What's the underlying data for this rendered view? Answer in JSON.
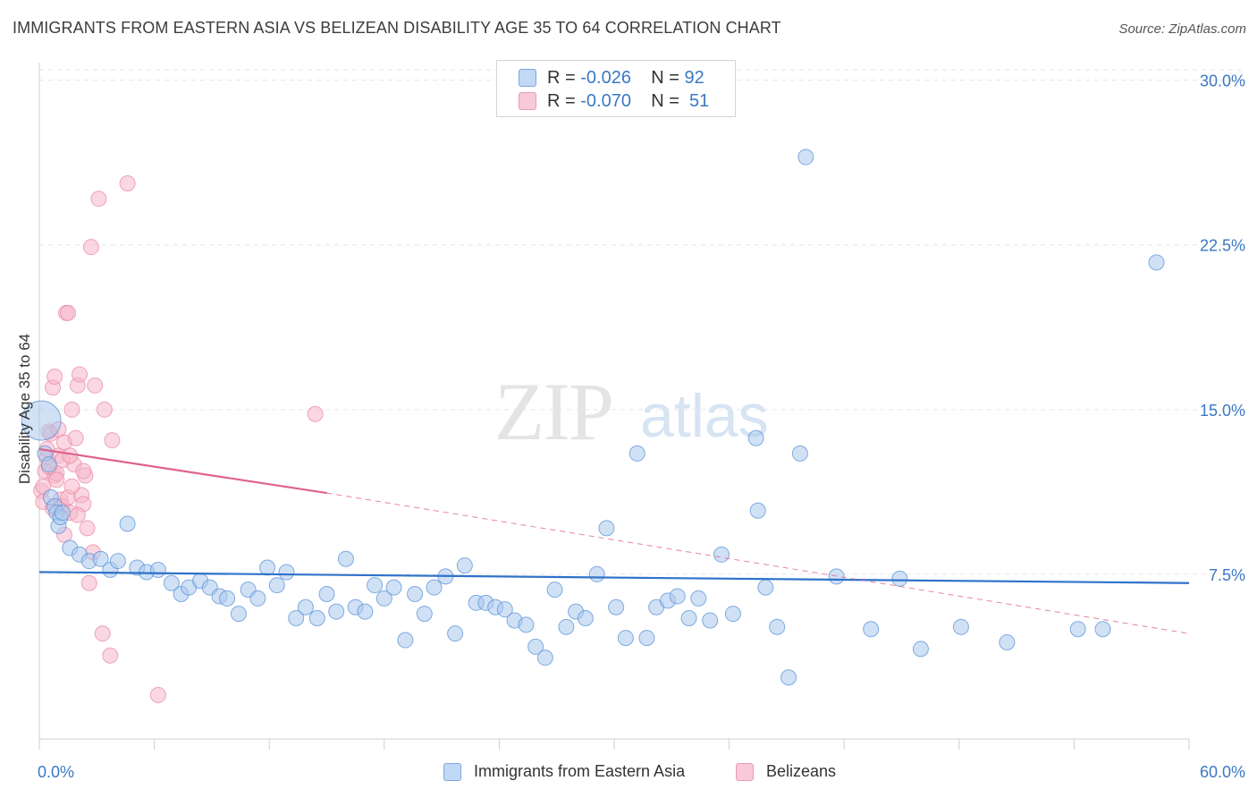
{
  "title": "IMMIGRANTS FROM EASTERN ASIA VS BELIZEAN DISABILITY AGE 35 TO 64 CORRELATION CHART",
  "source": "Source: ZipAtlas.com",
  "watermark": {
    "zip": "ZIP",
    "atlas": "atlas"
  },
  "legend": {
    "rows": [
      {
        "r_label": "R =",
        "r_value": "-0.026",
        "n_label": "N =",
        "n_value": "92"
      },
      {
        "r_label": "R =",
        "r_value": "-0.070",
        "n_label": "N =",
        "n_value": "51"
      }
    ]
  },
  "colors": {
    "blue_fill": "#a9c8ef",
    "blue_stroke": "#5b93d6",
    "blue_line": "#2f72c9",
    "pink_fill": "#f6b6cb",
    "pink_stroke": "#e8849f",
    "pink_line": "#e0628c",
    "tick_label": "#3b78c4",
    "grid": "#e6e6e6"
  },
  "chart_data": {
    "type": "scatter",
    "title": "IMMIGRANTS FROM EASTERN ASIA VS BELIZEAN DISABILITY AGE 35 TO 64 CORRELATION CHART",
    "xlabel": "",
    "ylabel": "Disability Age 35 to 64",
    "xlim": [
      0,
      60
    ],
    "ylim": [
      0,
      30.8
    ],
    "x_tick_labels": [
      "0.0%",
      "60.0%"
    ],
    "y_ticks": [
      7.5,
      15.0,
      22.5,
      30.0
    ],
    "y_tick_labels": [
      "7.5%",
      "15.0%",
      "22.5%",
      "30.0%"
    ],
    "grid": "horizontal dashed",
    "legend_position": "top-center",
    "series": [
      {
        "name": "Immigrants from Eastern Asia",
        "color": "#a9c8ef",
        "trend": {
          "x": [
            0,
            60
          ],
          "y": [
            7.6,
            7.1
          ],
          "style": "solid"
        },
        "points": [
          [
            0.1,
            14.5
          ],
          [
            0.3,
            13.0
          ],
          [
            0.5,
            12.5
          ],
          [
            0.6,
            11.0
          ],
          [
            0.8,
            10.6
          ],
          [
            0.9,
            10.3
          ],
          [
            1.0,
            9.7
          ],
          [
            1.1,
            10.1
          ],
          [
            1.2,
            10.3
          ],
          [
            1.6,
            8.7
          ],
          [
            2.1,
            8.4
          ],
          [
            2.6,
            8.1
          ],
          [
            3.2,
            8.2
          ],
          [
            3.7,
            7.7
          ],
          [
            4.1,
            8.1
          ],
          [
            4.6,
            9.8
          ],
          [
            5.1,
            7.8
          ],
          [
            5.6,
            7.6
          ],
          [
            6.2,
            7.7
          ],
          [
            6.9,
            7.1
          ],
          [
            7.4,
            6.6
          ],
          [
            7.8,
            6.9
          ],
          [
            8.4,
            7.2
          ],
          [
            8.9,
            6.9
          ],
          [
            9.4,
            6.5
          ],
          [
            9.8,
            6.4
          ],
          [
            10.4,
            5.7
          ],
          [
            10.9,
            6.8
          ],
          [
            11.4,
            6.4
          ],
          [
            11.9,
            7.8
          ],
          [
            12.4,
            7.0
          ],
          [
            12.9,
            7.6
          ],
          [
            13.4,
            5.5
          ],
          [
            13.9,
            6.0
          ],
          [
            14.5,
            5.5
          ],
          [
            15.0,
            6.6
          ],
          [
            15.5,
            5.8
          ],
          [
            16.0,
            8.2
          ],
          [
            16.5,
            6.0
          ],
          [
            17.0,
            5.8
          ],
          [
            17.5,
            7.0
          ],
          [
            18.0,
            6.4
          ],
          [
            18.5,
            6.9
          ],
          [
            19.1,
            4.5
          ],
          [
            19.6,
            6.6
          ],
          [
            20.1,
            5.7
          ],
          [
            20.6,
            6.9
          ],
          [
            21.2,
            7.4
          ],
          [
            21.7,
            4.8
          ],
          [
            22.2,
            7.9
          ],
          [
            22.8,
            6.2
          ],
          [
            23.3,
            6.2
          ],
          [
            23.8,
            6.0
          ],
          [
            24.3,
            5.9
          ],
          [
            24.8,
            5.4
          ],
          [
            25.4,
            5.2
          ],
          [
            25.9,
            4.2
          ],
          [
            26.4,
            3.7
          ],
          [
            26.9,
            6.8
          ],
          [
            27.5,
            5.1
          ],
          [
            28.0,
            5.8
          ],
          [
            28.5,
            5.5
          ],
          [
            29.1,
            7.5
          ],
          [
            29.6,
            9.6
          ],
          [
            30.1,
            6.0
          ],
          [
            30.6,
            4.6
          ],
          [
            31.2,
            13.0
          ],
          [
            31.7,
            4.6
          ],
          [
            32.2,
            6.0
          ],
          [
            32.8,
            6.3
          ],
          [
            33.3,
            6.5
          ],
          [
            33.9,
            5.5
          ],
          [
            34.4,
            6.4
          ],
          [
            35.0,
            5.4
          ],
          [
            35.6,
            8.4
          ],
          [
            36.2,
            5.7
          ],
          [
            37.4,
            13.7
          ],
          [
            37.5,
            10.4
          ],
          [
            37.9,
            6.9
          ],
          [
            38.5,
            5.1
          ],
          [
            39.1,
            2.8
          ],
          [
            39.7,
            13.0
          ],
          [
            40.0,
            26.5
          ],
          [
            41.6,
            7.4
          ],
          [
            43.4,
            5.0
          ],
          [
            44.9,
            7.3
          ],
          [
            46.0,
            4.1
          ],
          [
            48.1,
            5.1
          ],
          [
            50.5,
            4.4
          ],
          [
            54.2,
            5.0
          ],
          [
            55.5,
            5.0
          ],
          [
            58.3,
            21.7
          ]
        ]
      },
      {
        "name": "Belizeans",
        "color": "#f6b6cb",
        "trend": {
          "x": [
            0,
            15
          ],
          "y": [
            13.2,
            11.2
          ],
          "style": "solid",
          "extended": {
            "x": [
              15,
              60
            ],
            "y": [
              11.2,
              4.8
            ],
            "style": "dashed"
          }
        },
        "points": [
          [
            0.1,
            11.3
          ],
          [
            0.2,
            10.8
          ],
          [
            0.3,
            12.2
          ],
          [
            0.4,
            12.8
          ],
          [
            0.5,
            14.0
          ],
          [
            0.6,
            13.9
          ],
          [
            0.7,
            16.0
          ],
          [
            0.8,
            16.5
          ],
          [
            0.8,
            12.0
          ],
          [
            0.9,
            12.1
          ],
          [
            1.0,
            14.1
          ],
          [
            1.0,
            12.9
          ],
          [
            1.1,
            10.9
          ],
          [
            1.2,
            10.6
          ],
          [
            1.3,
            9.3
          ],
          [
            1.3,
            13.5
          ],
          [
            1.4,
            19.4
          ],
          [
            1.5,
            19.4
          ],
          [
            1.5,
            11.0
          ],
          [
            1.6,
            10.3
          ],
          [
            1.7,
            15.0
          ],
          [
            1.8,
            12.5
          ],
          [
            1.9,
            13.7
          ],
          [
            2.0,
            16.1
          ],
          [
            2.1,
            16.6
          ],
          [
            2.2,
            11.1
          ],
          [
            2.3,
            10.7
          ],
          [
            2.4,
            12.0
          ],
          [
            2.5,
            9.6
          ],
          [
            2.6,
            7.1
          ],
          [
            2.7,
            22.4
          ],
          [
            2.8,
            8.5
          ],
          [
            2.9,
            16.1
          ],
          [
            3.1,
            24.6
          ],
          [
            3.3,
            4.8
          ],
          [
            3.4,
            15.0
          ],
          [
            3.7,
            3.8
          ],
          [
            3.8,
            13.6
          ],
          [
            4.6,
            25.3
          ],
          [
            6.2,
            2.0
          ],
          [
            14.4,
            14.8
          ],
          [
            0.2,
            11.5
          ],
          [
            0.5,
            12.4
          ],
          [
            0.7,
            10.5
          ],
          [
            1.2,
            12.7
          ],
          [
            1.6,
            12.9
          ],
          [
            2.0,
            10.2
          ],
          [
            0.4,
            13.2
          ],
          [
            0.9,
            11.8
          ],
          [
            1.7,
            11.5
          ],
          [
            2.3,
            12.2
          ]
        ]
      }
    ]
  },
  "bottom_legend": {
    "items": [
      {
        "label": "Immigrants from Eastern Asia"
      },
      {
        "label": "Belizeans"
      }
    ]
  }
}
